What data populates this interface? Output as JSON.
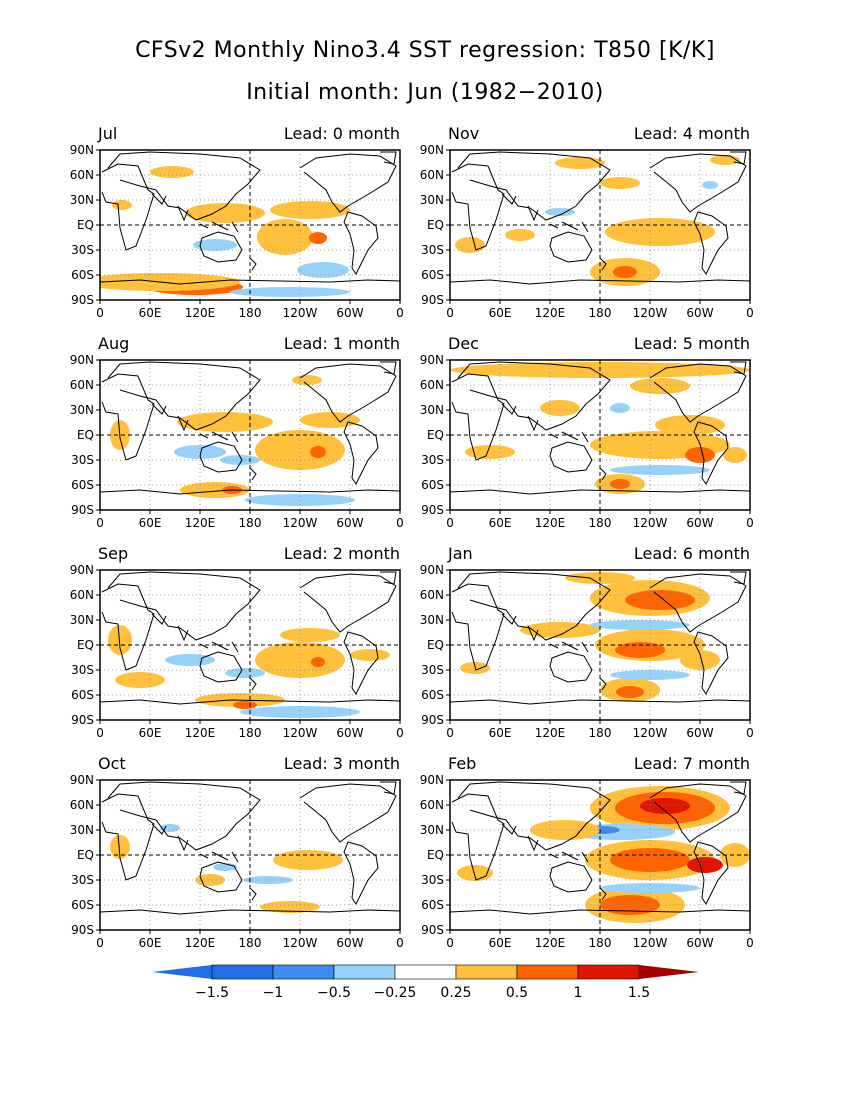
{
  "title_line1": "CFSv2 Monthly Nino3.4 SST regression: T850 [K/K]",
  "title_line2": "Initial month: Jun (1982−2010)",
  "y_tick_labels": [
    "90N",
    "60N",
    "30N",
    "EQ",
    "30S",
    "60S",
    "90S"
  ],
  "x_tick_labels": [
    "0",
    "60E",
    "120E",
    "180",
    "120W",
    "60W",
    "0"
  ],
  "colors": {
    "neg_strong": "#1e6ee6",
    "neg_mid": "#3c8cf0",
    "neg_light": "#96d2fa",
    "pos_light": "#ffc03c",
    "pos_mid": "#ff6400",
    "pos_strong": "#e11400",
    "pos_max": "#a50000",
    "coast": "#000000"
  },
  "panels": [
    {
      "month": "Jul",
      "lead": "Lead: 0 month",
      "col": 0,
      "row": 0,
      "blobs": [
        [
          285,
          237,
          28,
          18,
          1
        ],
        [
          318,
          238,
          9,
          6,
          2
        ],
        [
          225,
          213,
          40,
          10,
          1
        ],
        [
          310,
          210,
          40,
          9,
          1
        ],
        [
          195,
          287,
          48,
          8,
          2
        ],
        [
          160,
          282,
          80,
          9,
          1
        ],
        [
          323,
          270,
          26,
          8,
          -1
        ],
        [
          290,
          292,
          60,
          5,
          -1
        ],
        [
          215,
          245,
          22,
          6,
          -1
        ],
        [
          172,
          172,
          22,
          6,
          1
        ],
        [
          122,
          205,
          10,
          5,
          1
        ]
      ]
    },
    {
      "month": "Aug",
      "lead": "Lead: 1 month",
      "col": 0,
      "row": 1,
      "blobs": [
        [
          300,
          450,
          45,
          20,
          1
        ],
        [
          318,
          452,
          8,
          6,
          2
        ],
        [
          225,
          422,
          48,
          10,
          1
        ],
        [
          330,
          420,
          30,
          8,
          1
        ],
        [
          215,
          490,
          35,
          8,
          1
        ],
        [
          232,
          490,
          10,
          4,
          2
        ],
        [
          200,
          452,
          26,
          7,
          -1
        ],
        [
          240,
          460,
          20,
          5,
          -1
        ],
        [
          300,
          500,
          55,
          6,
          -1
        ],
        [
          120,
          435,
          10,
          15,
          1
        ],
        [
          307,
          380,
          15,
          5,
          1
        ]
      ]
    },
    {
      "month": "Sep",
      "lead": "Lead: 2 month",
      "col": 0,
      "row": 2,
      "blobs": [
        [
          300,
          660,
          45,
          18,
          1
        ],
        [
          318,
          662,
          7,
          5,
          2
        ],
        [
          310,
          635,
          30,
          7,
          1
        ],
        [
          120,
          640,
          12,
          15,
          1
        ],
        [
          140,
          680,
          25,
          8,
          1
        ],
        [
          240,
          700,
          45,
          7,
          1
        ],
        [
          245,
          705,
          12,
          4,
          2
        ],
        [
          190,
          660,
          25,
          6,
          -1
        ],
        [
          245,
          673,
          20,
          5,
          -1
        ],
        [
          300,
          712,
          60,
          6,
          -1
        ],
        [
          370,
          655,
          20,
          6,
          1
        ]
      ]
    },
    {
      "month": "Oct",
      "lead": "Lead: 3 month",
      "col": 0,
      "row": 3,
      "blobs": [
        [
          308,
          860,
          35,
          10,
          1
        ],
        [
          210,
          880,
          15,
          6,
          1
        ],
        [
          290,
          907,
          30,
          6,
          1
        ],
        [
          120,
          847,
          10,
          12,
          1
        ],
        [
          170,
          828,
          10,
          4,
          -1
        ],
        [
          268,
          880,
          25,
          4,
          -1
        ],
        [
          225,
          867,
          12,
          4,
          -1
        ]
      ]
    },
    {
      "month": "Nov",
      "lead": "Lead: 4 month",
      "col": 1,
      "row": 0,
      "blobs": [
        [
          660,
          232,
          55,
          14,
          1
        ],
        [
          625,
          272,
          35,
          14,
          1
        ],
        [
          625,
          272,
          12,
          6,
          2
        ],
        [
          680,
          230,
          20,
          5,
          1
        ],
        [
          580,
          163,
          25,
          6,
          1
        ],
        [
          620,
          183,
          20,
          6,
          1
        ],
        [
          725,
          160,
          15,
          5,
          1
        ],
        [
          470,
          245,
          15,
          8,
          1
        ],
        [
          520,
          235,
          15,
          6,
          1
        ],
        [
          560,
          212,
          15,
          4,
          -1
        ],
        [
          710,
          185,
          8,
          4,
          -1
        ]
      ]
    },
    {
      "month": "Dec",
      "lead": "Lead: 5 month",
      "col": 1,
      "row": 1,
      "blobs": [
        [
          600,
          370,
          150,
          8,
          1
        ],
        [
          660,
          445,
          70,
          14,
          1
        ],
        [
          700,
          455,
          15,
          8,
          2
        ],
        [
          690,
          425,
          35,
          10,
          1
        ],
        [
          620,
          484,
          25,
          10,
          1
        ],
        [
          620,
          484,
          10,
          5,
          2
        ],
        [
          660,
          386,
          30,
          8,
          1
        ],
        [
          490,
          452,
          25,
          7,
          1
        ],
        [
          560,
          408,
          20,
          8,
          1
        ],
        [
          620,
          408,
          10,
          5,
          -1
        ],
        [
          660,
          470,
          50,
          5,
          -1
        ],
        [
          735,
          455,
          12,
          8,
          1
        ]
      ]
    },
    {
      "month": "Jan",
      "lead": "Lead: 6 month",
      "col": 1,
      "row": 2,
      "blobs": [
        [
          650,
          598,
          60,
          18,
          1
        ],
        [
          660,
          600,
          35,
          10,
          2
        ],
        [
          650,
          645,
          55,
          16,
          1
        ],
        [
          640,
          650,
          25,
          8,
          2
        ],
        [
          630,
          690,
          30,
          12,
          1
        ],
        [
          630,
          692,
          14,
          6,
          2
        ],
        [
          560,
          630,
          40,
          8,
          1
        ],
        [
          640,
          625,
          50,
          5,
          -1
        ],
        [
          650,
          675,
          40,
          5,
          -1
        ],
        [
          700,
          660,
          20,
          10,
          1
        ],
        [
          475,
          668,
          15,
          6,
          1
        ],
        [
          600,
          578,
          35,
          6,
          1
        ]
      ]
    },
    {
      "month": "Feb",
      "lead": "Lead: 7 month",
      "col": 1,
      "row": 3,
      "blobs": [
        [
          660,
          808,
          70,
          22,
          1
        ],
        [
          665,
          808,
          50,
          16,
          2
        ],
        [
          665,
          806,
          25,
          8,
          3
        ],
        [
          650,
          860,
          65,
          20,
          1
        ],
        [
          650,
          860,
          40,
          12,
          2
        ],
        [
          705,
          865,
          18,
          8,
          3
        ],
        [
          635,
          905,
          50,
          18,
          1
        ],
        [
          630,
          905,
          30,
          10,
          2
        ],
        [
          620,
          832,
          55,
          8,
          -1
        ],
        [
          600,
          830,
          20,
          4,
          -2
        ],
        [
          650,
          888,
          50,
          5,
          -1
        ],
        [
          565,
          830,
          35,
          10,
          1
        ],
        [
          475,
          873,
          18,
          8,
          1
        ],
        [
          735,
          855,
          15,
          12,
          1
        ]
      ]
    }
  ],
  "colorbar": {
    "labels": [
      "−1.5",
      "−1",
      "−0.5",
      "−0.25",
      "0.25",
      "0.5",
      "1",
      "1.5"
    ]
  }
}
